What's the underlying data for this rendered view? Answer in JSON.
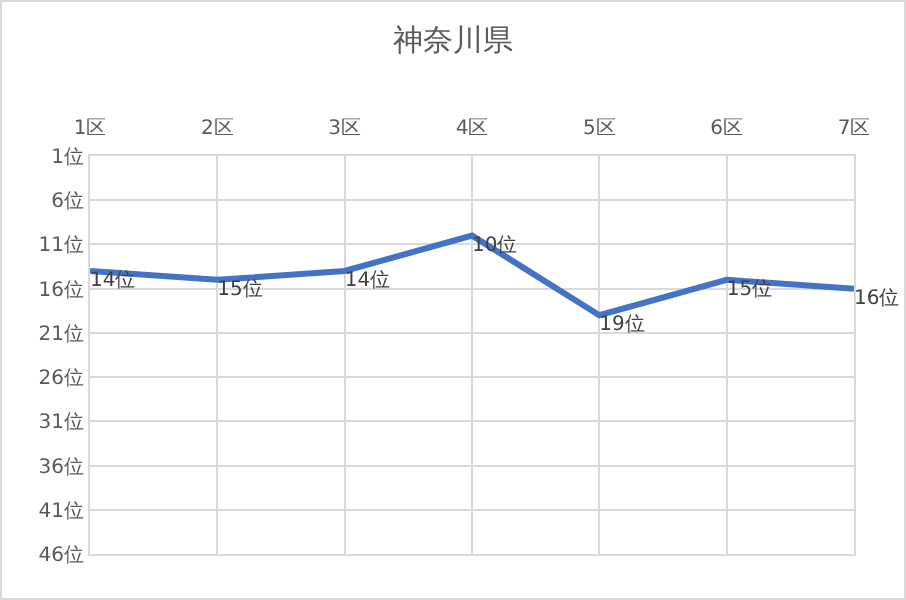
{
  "chart_data": {
    "type": "line",
    "title": "神奈川県",
    "categories": [
      "1区",
      "2区",
      "3区",
      "4区",
      "5区",
      "6区",
      "7区"
    ],
    "series": [
      {
        "color": "#4472c4",
        "values": [
          14,
          15,
          14,
          10,
          19,
          15,
          16
        ],
        "value_labels": [
          "14位",
          "15位",
          "14位",
          "10位",
          "19位",
          "15位",
          "16位"
        ]
      }
    ],
    "ylim": [
      46,
      1
    ],
    "yticks": [
      {
        "value": 1,
        "label": "1位"
      },
      {
        "value": 6,
        "label": "6位"
      },
      {
        "value": 11,
        "label": "11位"
      },
      {
        "value": 16,
        "label": "16位"
      },
      {
        "value": 21,
        "label": "21位"
      },
      {
        "value": 26,
        "label": "26位"
      },
      {
        "value": 31,
        "label": "31位"
      },
      {
        "value": 36,
        "label": "36位"
      },
      {
        "value": 41,
        "label": "41位"
      },
      {
        "value": 46,
        "label": "46位"
      }
    ],
    "grid": true,
    "marker": "none",
    "line_style": "solid"
  }
}
